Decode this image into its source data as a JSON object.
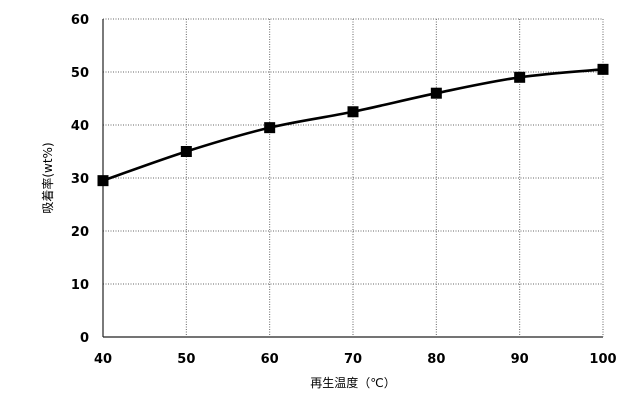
{
  "chart_data": {
    "type": "line",
    "title": "",
    "xlabel": "再生温度（℃）",
    "ylabel": "吸着率(wt%)",
    "x": [
      40,
      50,
      60,
      70,
      80,
      90,
      100
    ],
    "series": [
      {
        "values": [
          29.5,
          35,
          39.5,
          42.5,
          46,
          49,
          50.5
        ],
        "color": "#000000",
        "marker": "square",
        "smooth": true
      }
    ],
    "xlim": [
      40,
      100
    ],
    "ylim": [
      0,
      60
    ],
    "xticks": [
      40,
      50,
      60,
      70,
      80,
      90,
      100
    ],
    "yticks": [
      0,
      10,
      20,
      30,
      40,
      50,
      60
    ],
    "grid": true,
    "grid_style": "dotted",
    "legend": "none"
  }
}
